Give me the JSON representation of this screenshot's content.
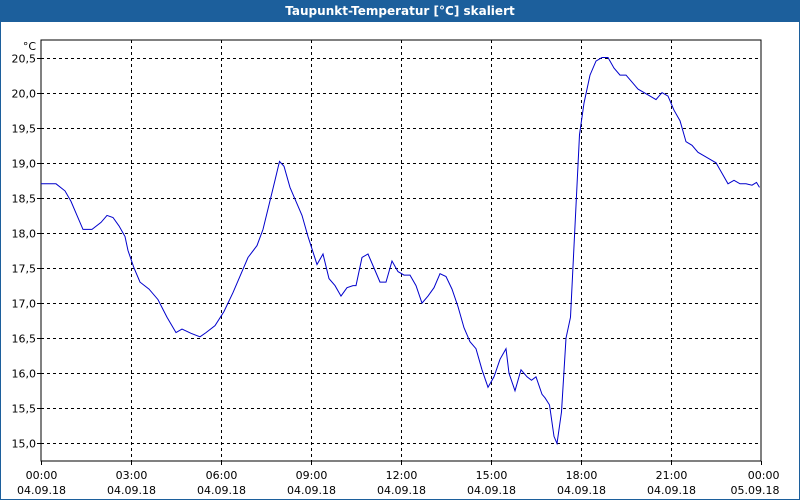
{
  "window": {
    "title": "Taupunkt-Temperatur [°C] skaliert"
  },
  "colors": {
    "titlebar": "#1c5f9c",
    "series": "#0000cc",
    "grid": "#000000",
    "frame": "#1c5f9c"
  },
  "chart_data": {
    "type": "line",
    "title": "Taupunkt-Temperatur [°C] skaliert",
    "ylabel": "°C",
    "xlabel": "",
    "ylim": [
      14.75,
      20.75
    ],
    "xlim_hours": [
      0,
      24
    ],
    "grid": true,
    "y_ticks": [
      {
        "value": 15.0,
        "label": "15,0"
      },
      {
        "value": 15.5,
        "label": "15,5"
      },
      {
        "value": 16.0,
        "label": "16,0"
      },
      {
        "value": 16.5,
        "label": "16,5"
      },
      {
        "value": 17.0,
        "label": "17,0"
      },
      {
        "value": 17.5,
        "label": "17,5"
      },
      {
        "value": 18.0,
        "label": "18,0"
      },
      {
        "value": 18.5,
        "label": "18,5"
      },
      {
        "value": 19.0,
        "label": "19,0"
      },
      {
        "value": 19.5,
        "label": "19,5"
      },
      {
        "value": 20.0,
        "label": "20,0"
      },
      {
        "value": 20.5,
        "label": "20,5"
      }
    ],
    "x_ticks": [
      {
        "hour": 0,
        "time": "00:00",
        "date": "04.09.18"
      },
      {
        "hour": 3,
        "time": "03:00",
        "date": "04.09.18"
      },
      {
        "hour": 6,
        "time": "06:00",
        "date": "04.09.18"
      },
      {
        "hour": 9,
        "time": "09:00",
        "date": "04.09.18"
      },
      {
        "hour": 12,
        "time": "12:00",
        "date": "04.09.18"
      },
      {
        "hour": 15,
        "time": "15:00",
        "date": "04.09.18"
      },
      {
        "hour": 18,
        "time": "18:00",
        "date": "04.09.18"
      },
      {
        "hour": 21,
        "time": "21:00",
        "date": "04.09.18"
      },
      {
        "hour": 24,
        "time": "00:00",
        "date": "05.09.18"
      }
    ],
    "series": [
      {
        "x_hours": [
          0,
          0.3,
          0.5,
          0.8,
          1.0,
          1.2,
          1.4,
          1.7,
          2.0,
          2.2,
          2.4,
          2.6,
          2.8,
          2.9,
          3.1,
          3.3,
          3.6,
          3.9,
          4.2,
          4.5,
          4.7,
          5.0,
          5.3,
          5.5,
          5.8,
          6.1,
          6.4,
          6.7,
          6.9,
          7.2,
          7.4,
          7.6,
          7.8,
          7.95,
          8.1,
          8.3,
          8.5,
          8.7,
          8.9,
          9.05,
          9.2,
          9.4,
          9.6,
          9.8,
          10.0,
          10.2,
          10.4,
          10.5,
          10.7,
          10.9,
          11.1,
          11.3,
          11.5,
          11.7,
          11.9,
          12.1,
          12.3,
          12.5,
          12.7,
          12.9,
          13.1,
          13.3,
          13.5,
          13.7,
          13.9,
          14.1,
          14.3,
          14.5,
          14.7,
          14.9,
          15.1,
          15.3,
          15.5,
          15.6,
          15.8,
          16.0,
          16.2,
          16.35,
          16.5,
          16.7,
          16.8,
          16.95,
          17.1,
          17.2,
          17.35,
          17.5,
          17.65,
          17.8,
          17.95,
          18.1,
          18.3,
          18.5,
          18.7,
          18.9,
          19.1,
          19.3,
          19.5,
          19.7,
          19.9,
          20.1,
          20.3,
          20.5,
          20.7,
          20.9,
          21.1,
          21.3,
          21.5,
          21.7,
          21.9,
          22.1,
          22.3,
          22.5,
          22.7,
          22.9,
          23.1,
          23.3,
          23.5,
          23.7,
          23.85,
          23.95
        ],
        "values": [
          18.7,
          18.7,
          18.7,
          18.6,
          18.45,
          18.25,
          18.05,
          18.05,
          18.15,
          18.25,
          18.22,
          18.1,
          17.95,
          17.75,
          17.5,
          17.3,
          17.2,
          17.05,
          16.8,
          16.58,
          16.63,
          16.57,
          16.52,
          16.58,
          16.68,
          16.88,
          17.15,
          17.45,
          17.65,
          17.82,
          18.05,
          18.4,
          18.75,
          19.02,
          18.95,
          18.65,
          18.45,
          18.25,
          17.95,
          17.75,
          17.55,
          17.7,
          17.35,
          17.25,
          17.1,
          17.22,
          17.25,
          17.25,
          17.65,
          17.7,
          17.5,
          17.3,
          17.3,
          17.6,
          17.45,
          17.4,
          17.4,
          17.25,
          17.0,
          17.1,
          17.22,
          17.42,
          17.38,
          17.2,
          16.95,
          16.65,
          16.45,
          16.35,
          16.05,
          15.8,
          15.95,
          16.2,
          16.35,
          16.0,
          15.75,
          16.05,
          15.95,
          15.9,
          15.95,
          15.7,
          15.65,
          15.55,
          15.1,
          15.0,
          15.45,
          16.5,
          16.8,
          18.1,
          19.4,
          19.85,
          20.25,
          20.45,
          20.5,
          20.5,
          20.35,
          20.25,
          20.25,
          20.15,
          20.05,
          20.0,
          19.95,
          19.9,
          20.0,
          19.95,
          19.75,
          19.6,
          19.3,
          19.25,
          19.15,
          19.1,
          19.05,
          19.0,
          18.85,
          18.7,
          18.75,
          18.7,
          18.7,
          18.68,
          18.72,
          18.65
        ]
      }
    ]
  }
}
